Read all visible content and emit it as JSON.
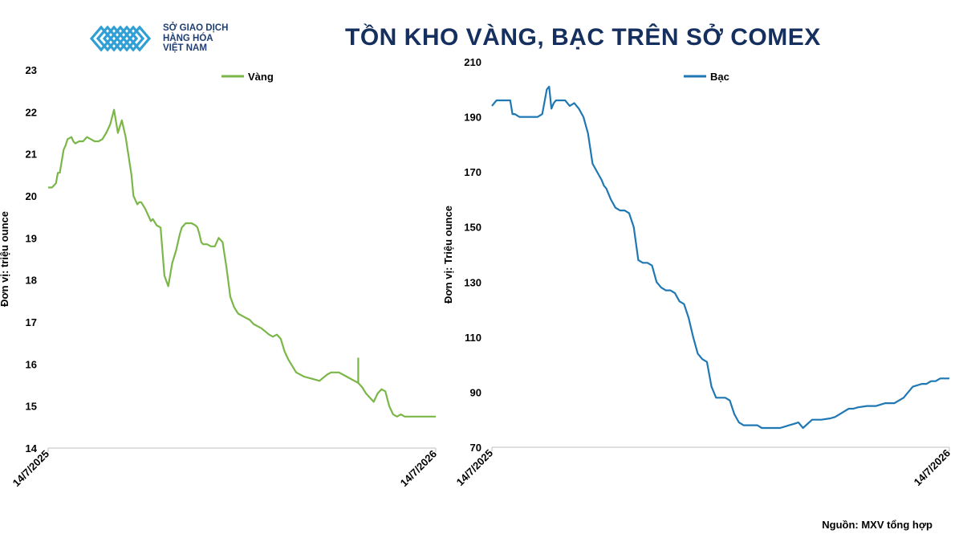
{
  "header": {
    "logo_lines": [
      "SỞ GIAO DỊCH",
      "HÀNG HÓA",
      "VIỆT NAM"
    ],
    "title": "TỒN KHO VÀNG, BẠC TRÊN SỞ COMEX"
  },
  "source": "Nguồn: MXV tổng hợp",
  "colors": {
    "gold": "#7ab648",
    "silver": "#1f78b4",
    "title": "#152f5e",
    "logo": "#2f9fd6"
  },
  "chart_data": [
    {
      "type": "line",
      "title": "",
      "ylabel": "Đơn vị:  triệu ounce",
      "ylim": [
        14,
        23
      ],
      "yticks": [
        14,
        15,
        16,
        17,
        18,
        19,
        20,
        21,
        22,
        23
      ],
      "x_labels": [
        "14/7/2025",
        "14/7/2026"
      ],
      "legend": "top-center",
      "series": [
        {
          "name": "Vàng",
          "x": [
            0,
            0.01,
            0.02,
            0.025,
            0.03,
            0.04,
            0.045,
            0.05,
            0.06,
            0.065,
            0.07,
            0.08,
            0.09,
            0.1,
            0.11,
            0.12,
            0.13,
            0.14,
            0.15,
            0.16,
            0.17,
            0.18,
            0.19,
            0.2,
            0.205,
            0.21,
            0.215,
            0.22,
            0.225,
            0.23,
            0.235,
            0.24,
            0.25,
            0.26,
            0.265,
            0.27,
            0.28,
            0.29,
            0.3,
            0.31,
            0.32,
            0.33,
            0.34,
            0.345,
            0.35,
            0.355,
            0.36,
            0.37,
            0.38,
            0.385,
            0.39,
            0.395,
            0.4,
            0.41,
            0.42,
            0.43,
            0.44,
            0.45,
            0.46,
            0.47,
            0.48,
            0.49,
            0.5,
            0.51,
            0.52,
            0.53,
            0.55,
            0.57,
            0.58,
            0.59,
            0.6,
            0.61,
            0.62,
            0.64,
            0.66,
            0.68,
            0.7,
            0.72,
            0.73,
            0.74,
            0.75,
            0.76,
            0.77,
            0.78,
            0.79,
            0.8,
            0.81,
            0.82,
            0.83,
            0.84,
            0.85,
            0.86,
            0.87,
            0.88,
            0.89,
            0.9,
            0.91,
            0.92,
            0.93,
            0.94,
            0.95,
            0.96,
            0.97,
            0.98,
            0.99,
            1.0
          ],
          "y": [
            20.2,
            20.2,
            20.3,
            20.55,
            20.55,
            21.1,
            21.2,
            21.35,
            21.4,
            21.3,
            21.25,
            21.3,
            21.3,
            21.4,
            21.35,
            21.3,
            21.3,
            21.35,
            21.5,
            21.7,
            22.05,
            21.5,
            21.8,
            21.4,
            21.1,
            20.8,
            20.5,
            20.0,
            19.9,
            19.8,
            19.85,
            19.85,
            19.7,
            19.5,
            19.4,
            19.45,
            19.3,
            19.25,
            18.1,
            17.85,
            18.4,
            18.7,
            19.1,
            19.25,
            19.3,
            19.35,
            19.35,
            19.35,
            19.3,
            19.25,
            19.1,
            18.9,
            18.85,
            18.85,
            18.8,
            18.8,
            19.0,
            18.9,
            18.3,
            17.6,
            17.35,
            17.2,
            17.15,
            17.1,
            17.05,
            16.95,
            16.85,
            16.7,
            16.65,
            16.7,
            16.6,
            16.3,
            16.1,
            15.8,
            15.7,
            15.65,
            15.6,
            15.75,
            15.8,
            15.8,
            15.8,
            15.75,
            15.7,
            15.65,
            15.6,
            15.55,
            15.45,
            15.3,
            15.2,
            15.1,
            15.3,
            15.4,
            15.35,
            15.0,
            14.8,
            14.75,
            14.8,
            14.75,
            14.75,
            14.75,
            14.75,
            14.75,
            14.75,
            14.75,
            14.75,
            14.75
          ],
          "spikes": [
            [
              0.8,
              16.15
            ]
          ]
        }
      ]
    },
    {
      "type": "line",
      "title": "",
      "ylabel": "Đơn vị:  Triệu ounce",
      "ylim": [
        70,
        210
      ],
      "yticks": [
        70,
        90,
        110,
        130,
        150,
        170,
        190,
        210
      ],
      "x_labels": [
        "14/7/2025",
        "14/7/2026"
      ],
      "legend": "top-center",
      "series": [
        {
          "name": "Bạc",
          "x": [
            0,
            0.01,
            0.02,
            0.03,
            0.04,
            0.045,
            0.05,
            0.06,
            0.07,
            0.08,
            0.1,
            0.11,
            0.12,
            0.125,
            0.13,
            0.135,
            0.14,
            0.15,
            0.16,
            0.17,
            0.18,
            0.19,
            0.2,
            0.21,
            0.22,
            0.23,
            0.24,
            0.245,
            0.25,
            0.26,
            0.27,
            0.28,
            0.29,
            0.3,
            0.31,
            0.32,
            0.33,
            0.34,
            0.35,
            0.36,
            0.37,
            0.38,
            0.39,
            0.4,
            0.41,
            0.42,
            0.43,
            0.44,
            0.45,
            0.46,
            0.47,
            0.48,
            0.49,
            0.5,
            0.51,
            0.52,
            0.53,
            0.54,
            0.55,
            0.56,
            0.57,
            0.58,
            0.59,
            0.6,
            0.61,
            0.62,
            0.63,
            0.64,
            0.65,
            0.66,
            0.67,
            0.68,
            0.7,
            0.72,
            0.74,
            0.75,
            0.76,
            0.77,
            0.78,
            0.79,
            0.8,
            0.82,
            0.84,
            0.86,
            0.88,
            0.9,
            0.92,
            0.94,
            0.95,
            0.96,
            0.97,
            0.98,
            0.99,
            1.0
          ],
          "y": [
            194,
            196,
            196,
            196,
            196,
            191,
            191,
            190,
            190,
            190,
            190,
            191,
            200,
            201,
            193,
            195,
            196,
            196,
            196,
            194,
            195,
            193,
            190,
            184,
            173,
            170,
            167,
            165,
            164,
            160,
            157,
            156,
            156,
            155,
            150,
            138,
            137,
            137,
            136,
            130,
            128,
            127,
            127,
            126,
            123,
            122,
            117,
            110,
            104,
            102,
            101,
            92,
            88,
            88,
            88,
            87,
            82,
            79,
            78,
            78,
            78,
            78,
            77,
            77,
            77,
            77,
            77,
            77.5,
            78,
            78.5,
            79,
            77,
            80,
            80,
            80.5,
            81,
            82,
            83,
            84,
            84,
            84.5,
            85,
            85,
            86,
            86,
            88,
            92,
            93,
            93,
            94,
            94,
            95,
            95,
            95
          ]
        }
      ]
    }
  ]
}
